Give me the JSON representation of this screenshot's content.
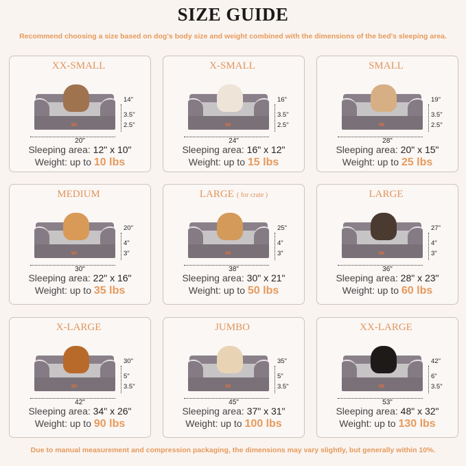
{
  "title": "SIZE GUIDE",
  "subtitle": "Recommend choosing a size based on dog's body size and weight combined with the dimensions of the bed's sleeping area.",
  "footer": "Due to manual measurement and compression packaging, the dimensions may vary slightly, but generally within 10%.",
  "labels": {
    "sleeping_area": "Sleeping area:",
    "weight": "Weight:  up to"
  },
  "colors": {
    "accent": "#e59a5c",
    "background": "#faf4f0",
    "bed": "#7a7078"
  },
  "sizes": [
    {
      "name": "XX-SMALL",
      "note": "",
      "width": "20\"",
      "height": "14\"",
      "bolster": "3.5\"",
      "base": "2.5\"",
      "sleeping_area": "12\" x 10\"",
      "weight": "10 lbs",
      "pet": "cat",
      "pet_color": "#a0734f"
    },
    {
      "name": "X-SMALL",
      "note": "",
      "width": "24\"",
      "height": "16\"",
      "bolster": "3.5\"",
      "base": "2.5\"",
      "sleeping_area": "16\" x 12\"",
      "weight": "15 lbs",
      "pet": "dog",
      "pet_color": "#efe4d8"
    },
    {
      "name": "SMALL",
      "note": "",
      "width": "28\"",
      "height": "19\"",
      "bolster": "3.5\"",
      "base": "2.5\"",
      "sleeping_area": "20\" x 15\"",
      "weight": "25 lbs",
      "pet": "dog",
      "pet_color": "#d6b084"
    },
    {
      "name": "MEDIUM",
      "note": "",
      "width": "30\"",
      "height": "20\"",
      "bolster": "4\"",
      "base": "3\"",
      "sleeping_area": "22\" x 16\"",
      "weight": "35 lbs",
      "pet": "dog",
      "pet_color": "#d89a56"
    },
    {
      "name": "LARGE",
      "note": "( for crate )",
      "width": "38\"",
      "height": "25\"",
      "bolster": "4\"",
      "base": "3\"",
      "sleeping_area": "30\" x 21\"",
      "weight": "50 lbs",
      "pet": "dog",
      "pet_color": "#d49a5a"
    },
    {
      "name": "LARGE",
      "note": "",
      "width": "36\"",
      "height": "27\"",
      "bolster": "4\"",
      "base": "3\"",
      "sleeping_area": "28\" x 23\"",
      "weight": "60 lbs",
      "pet": "dog",
      "pet_color": "#4a3a30"
    },
    {
      "name": "X-LARGE",
      "note": "",
      "width": "42\"",
      "height": "30\"",
      "bolster": "5\"",
      "base": "3.5\"",
      "sleeping_area": "34\" x 26\"",
      "weight": "90 lbs",
      "pet": "dog",
      "pet_color": "#b86a2a"
    },
    {
      "name": "JUMBO",
      "note": "",
      "width": "45\"",
      "height": "35\"",
      "bolster": "5\"",
      "base": "3.5\"",
      "sleeping_area": "37\" x 31\"",
      "weight": "100 lbs",
      "pet": "dog",
      "pet_color": "#e8d4b4"
    },
    {
      "name": "XX-LARGE",
      "note": "",
      "width": "53\"",
      "height": "42\"",
      "bolster": "6\"",
      "base": "3.5\"",
      "sleeping_area": "48\" x 32\"",
      "weight": "130 lbs",
      "pet": "dog",
      "pet_color": "#1e1a1a"
    }
  ]
}
